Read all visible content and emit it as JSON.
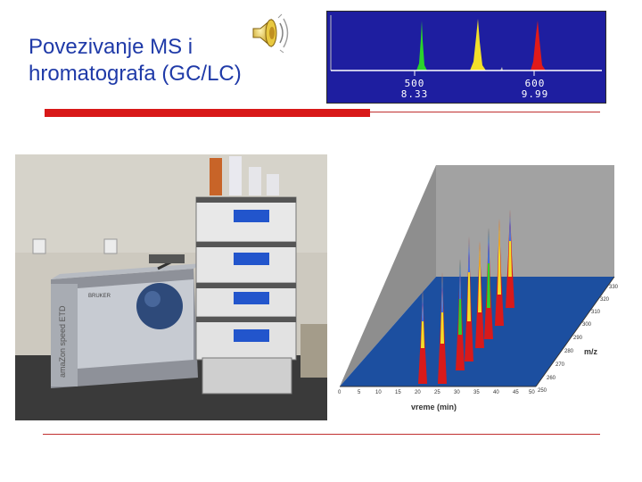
{
  "slide": {
    "title": "Povezivanje MS i hromatografa (GC/LC)"
  },
  "chromatogram": {
    "labels": [
      {
        "mass": "500",
        "time": "8.33"
      },
      {
        "mass": "600",
        "time": "9.99"
      }
    ],
    "colors": {
      "background": "#1e1ea0",
      "peak_green": "#2bd42b",
      "peak_yellow": "#f2e02a",
      "peak_red": "#e01a1a"
    }
  },
  "plot3d": {
    "xlabel": "vreme (min)",
    "zlabel": "m/z",
    "x_ticks": [
      "0",
      "5",
      "10",
      "15",
      "20",
      "25",
      "30",
      "35",
      "40",
      "45",
      "50"
    ],
    "z_ticks": [
      "250",
      "260",
      "270",
      "280",
      "290",
      "300",
      "310",
      "320",
      "330"
    ],
    "z_ticks_top": [
      "320",
      "330"
    ],
    "colors": {
      "floor": "#1c4fa0",
      "wall": "#9a9a9a",
      "peak_tip": "#3a6cf0",
      "peak_mid": "#f2e02a",
      "peak_base": "#d81a1a"
    }
  },
  "photo": {
    "instrument_label": "amaZon speed ETD",
    "brand": "BRUKER"
  },
  "icons": {
    "speaker": "speaker-icon"
  }
}
